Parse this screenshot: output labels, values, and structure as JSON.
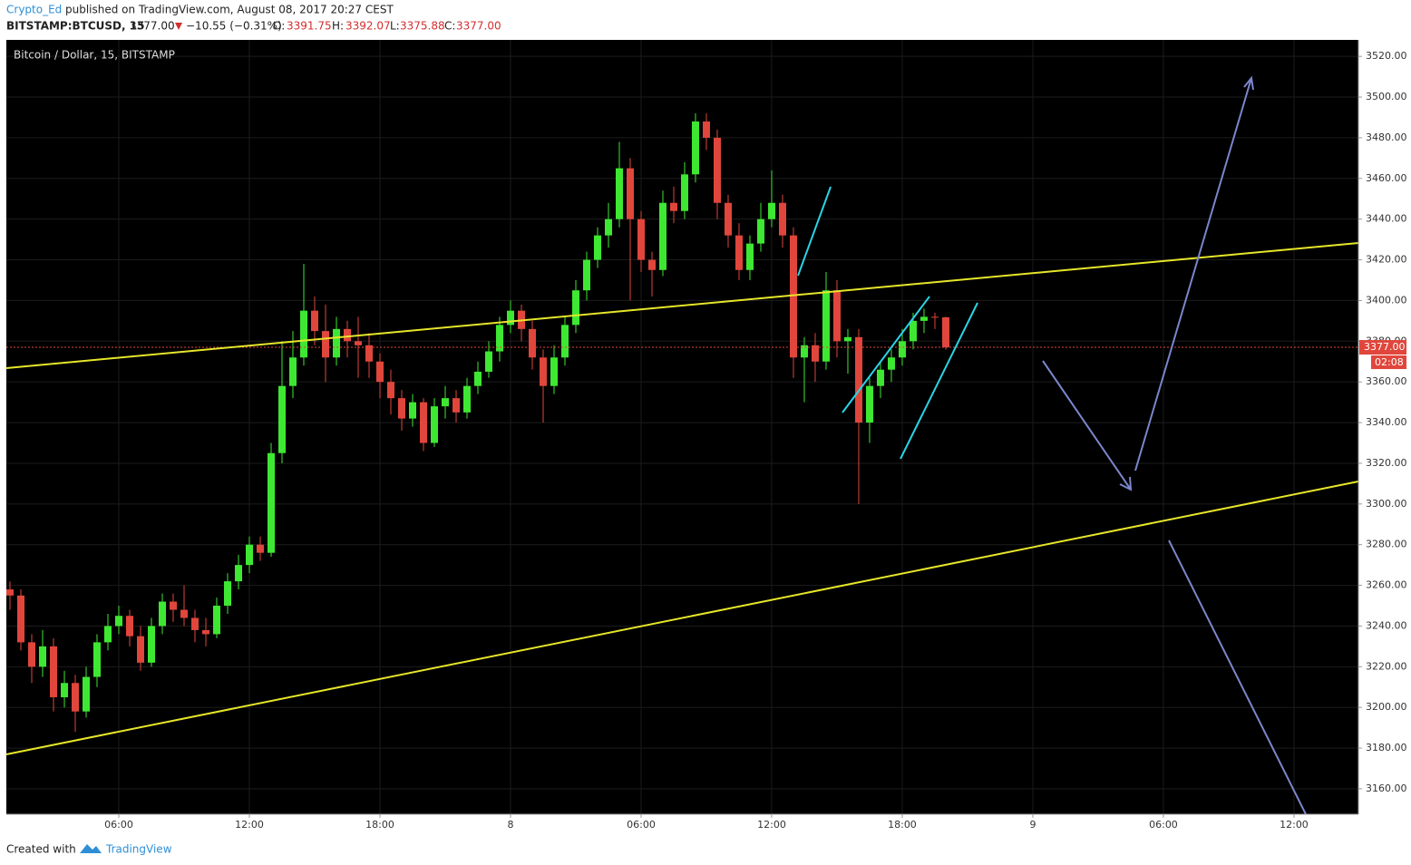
{
  "header": {
    "author": "Crypto_Ed",
    "published": "published on TradingView.com, August 08, 2017 20:27 CEST",
    "symbol": "BITSTAMP:BTCUSD, 15",
    "last": "3377.00",
    "change": "−10.55 (−0.31%)",
    "o_label": "O:",
    "o": "3391.75",
    "h_label": "H:",
    "h": "3392.07",
    "l_label": "L:",
    "l": "3375.88",
    "c_label": "C:",
    "c": "3377.00"
  },
  "footer": {
    "created": "Created with",
    "brand": "TradingView"
  },
  "chart_data": {
    "type": "candlestick",
    "title": "Bitcoin / Dollar, 15, BITSTAMP",
    "up_color": "#3ee832",
    "down_color": "#e0463c",
    "grid": true,
    "xlim": [
      0.833,
      62.96
    ],
    "ylim": [
      3147.5,
      3528.1
    ],
    "xticks": [
      {
        "value": 6,
        "label": "06:00"
      },
      {
        "value": 12,
        "label": "12:00"
      },
      {
        "value": 18,
        "label": "18:00"
      },
      {
        "value": 24,
        "label": "8"
      },
      {
        "value": 30,
        "label": "06:00"
      },
      {
        "value": 36,
        "label": "12:00"
      },
      {
        "value": 42,
        "label": "18:00"
      },
      {
        "value": 48,
        "label": "9"
      },
      {
        "value": 54,
        "label": "06:00"
      },
      {
        "value": 60,
        "label": "12:00"
      }
    ],
    "yticks": [
      {
        "value": 3160,
        "label": "3160.00"
      },
      {
        "value": 3180,
        "label": "3180.00"
      },
      {
        "value": 3200,
        "label": "3200.00"
      },
      {
        "value": 3220,
        "label": "3220.00"
      },
      {
        "value": 3240,
        "label": "3240.00"
      },
      {
        "value": 3260,
        "label": "3260.00"
      },
      {
        "value": 3280,
        "label": "3280.00"
      },
      {
        "value": 3300,
        "label": "3300.00"
      },
      {
        "value": 3320,
        "label": "3320.00"
      },
      {
        "value": 3340,
        "label": "3340.00"
      },
      {
        "value": 3360,
        "label": "3360.00"
      },
      {
        "value": 3380,
        "label": "3380.00"
      },
      {
        "value": 3400,
        "label": "3400.00"
      },
      {
        "value": 3420,
        "label": "3420.00"
      },
      {
        "value": 3440,
        "label": "3440.00"
      },
      {
        "value": 3460,
        "label": "3460.00"
      },
      {
        "value": 3480,
        "label": "3480.00"
      },
      {
        "value": 3500,
        "label": "3500.00"
      },
      {
        "value": 3520,
        "label": "3520.00"
      }
    ],
    "last_price": {
      "value": 3377,
      "label": "3377.00"
    },
    "countdown": "02:08",
    "x": [
      1,
      1.5,
      2,
      2.5,
      3,
      3.5,
      4,
      4.5,
      5,
      5.5,
      6,
      6.5,
      7,
      7.5,
      8,
      8.5,
      9,
      9.5,
      10,
      10.5,
      11,
      11.5,
      12,
      12.5,
      13,
      13.5,
      14,
      14.5,
      15,
      15.5,
      16,
      16.5,
      17,
      17.5,
      18,
      18.5,
      19,
      19.5,
      20,
      20.5,
      21,
      21.5,
      22,
      22.5,
      23,
      23.5,
      24,
      24.5,
      25,
      25.5,
      26,
      26.5,
      27,
      27.5,
      28,
      28.5,
      29,
      29.5,
      30,
      30.5,
      31,
      31.5,
      32,
      32.5,
      33,
      33.5,
      34,
      34.5,
      35,
      35.5,
      36,
      36.5,
      37,
      37.5,
      38,
      38.5,
      39,
      39.5,
      40,
      40.5,
      41,
      41.5,
      42,
      42.5,
      43,
      43.5,
      44
    ],
    "ohlc": [
      [
        3258,
        3262,
        3248,
        3255
      ],
      [
        3255,
        3258,
        3228,
        3232
      ],
      [
        3232,
        3236,
        3212,
        3220
      ],
      [
        3220,
        3238,
        3215,
        3230
      ],
      [
        3230,
        3234,
        3198,
        3205
      ],
      [
        3205,
        3218,
        3200,
        3212
      ],
      [
        3212,
        3216,
        3188,
        3198
      ],
      [
        3198,
        3220,
        3195,
        3215
      ],
      [
        3215,
        3236,
        3210,
        3232
      ],
      [
        3232,
        3246,
        3228,
        3240
      ],
      [
        3240,
        3250,
        3236,
        3245
      ],
      [
        3245,
        3248,
        3230,
        3235
      ],
      [
        3235,
        3240,
        3218,
        3222
      ],
      [
        3222,
        3244,
        3220,
        3240
      ],
      [
        3240,
        3256,
        3236,
        3252
      ],
      [
        3252,
        3256,
        3242,
        3248
      ],
      [
        3248,
        3260,
        3240,
        3244
      ],
      [
        3244,
        3248,
        3232,
        3238
      ],
      [
        3238,
        3244,
        3230,
        3236
      ],
      [
        3236,
        3254,
        3234,
        3250
      ],
      [
        3250,
        3266,
        3246,
        3262
      ],
      [
        3262,
        3275,
        3258,
        3270
      ],
      [
        3270,
        3284,
        3266,
        3280
      ],
      [
        3280,
        3284,
        3272,
        3276
      ],
      [
        3276,
        3330,
        3274,
        3325
      ],
      [
        3325,
        3380,
        3320,
        3358
      ],
      [
        3358,
        3385,
        3352,
        3372
      ],
      [
        3372,
        3418,
        3368,
        3395
      ],
      [
        3395,
        3402,
        3378,
        3385
      ],
      [
        3385,
        3398,
        3360,
        3372
      ],
      [
        3372,
        3392,
        3368,
        3386
      ],
      [
        3386,
        3390,
        3372,
        3380
      ],
      [
        3380,
        3392,
        3362,
        3378
      ],
      [
        3378,
        3384,
        3362,
        3370
      ],
      [
        3370,
        3374,
        3352,
        3360
      ],
      [
        3360,
        3366,
        3344,
        3352
      ],
      [
        3352,
        3356,
        3336,
        3342
      ],
      [
        3342,
        3354,
        3338,
        3350
      ],
      [
        3350,
        3352,
        3326,
        3330
      ],
      [
        3330,
        3352,
        3328,
        3348
      ],
      [
        3348,
        3358,
        3342,
        3352
      ],
      [
        3352,
        3356,
        3340,
        3345
      ],
      [
        3345,
        3362,
        3342,
        3358
      ],
      [
        3358,
        3370,
        3354,
        3365
      ],
      [
        3365,
        3380,
        3362,
        3375
      ],
      [
        3375,
        3392,
        3370,
        3388
      ],
      [
        3388,
        3400,
        3384,
        3395
      ],
      [
        3395,
        3398,
        3380,
        3386
      ],
      [
        3386,
        3390,
        3366,
        3372
      ],
      [
        3372,
        3376,
        3340,
        3358
      ],
      [
        3358,
        3378,
        3354,
        3372
      ],
      [
        3372,
        3392,
        3368,
        3388
      ],
      [
        3388,
        3410,
        3384,
        3405
      ],
      [
        3405,
        3424,
        3400,
        3420
      ],
      [
        3420,
        3436,
        3416,
        3432
      ],
      [
        3432,
        3448,
        3426,
        3440
      ],
      [
        3440,
        3478,
        3436,
        3465
      ],
      [
        3465,
        3470,
        3400,
        3440
      ],
      [
        3440,
        3444,
        3414,
        3420
      ],
      [
        3420,
        3424,
        3402,
        3415
      ],
      [
        3415,
        3454,
        3412,
        3448
      ],
      [
        3448,
        3456,
        3438,
        3444
      ],
      [
        3444,
        3468,
        3440,
        3462
      ],
      [
        3462,
        3492,
        3458,
        3488
      ],
      [
        3488,
        3492,
        3474,
        3480
      ],
      [
        3480,
        3484,
        3440,
        3448
      ],
      [
        3448,
        3452,
        3426,
        3432
      ],
      [
        3432,
        3438,
        3410,
        3415
      ],
      [
        3415,
        3432,
        3410,
        3428
      ],
      [
        3428,
        3448,
        3424,
        3440
      ],
      [
        3440,
        3464,
        3436,
        3448
      ],
      [
        3448,
        3452,
        3426,
        3432
      ],
      [
        3432,
        3436,
        3362,
        3372
      ],
      [
        3372,
        3382,
        3350,
        3378
      ],
      [
        3378,
        3384,
        3360,
        3370
      ],
      [
        3370,
        3414,
        3366,
        3405
      ],
      [
        3405,
        3410,
        3372,
        3380
      ],
      [
        3380,
        3386,
        3364,
        3382
      ],
      [
        3382,
        3386,
        3300,
        3340
      ],
      [
        3340,
        3362,
        3330,
        3358
      ],
      [
        3358,
        3370,
        3352,
        3366
      ],
      [
        3366,
        3376,
        3360,
        3372
      ],
      [
        3372,
        3386,
        3368,
        3380
      ],
      [
        3380,
        3394,
        3376,
        3390
      ],
      [
        3390,
        3396,
        3384,
        3392
      ],
      [
        3392,
        3394,
        3386,
        3391.75
      ],
      [
        3391.75,
        3392.07,
        3375.88,
        3377
      ]
    ]
  }
}
